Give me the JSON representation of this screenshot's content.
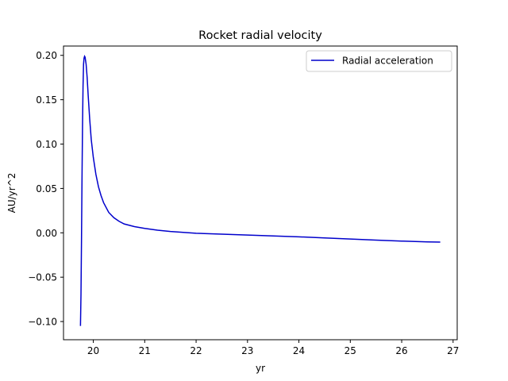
{
  "chart_data": {
    "type": "line",
    "title": "Rocket radial velocity",
    "xlabel": "yr",
    "ylabel": "AU/yr^2",
    "xlim": [
      19.42,
      27.08
    ],
    "ylim": [
      -0.1205,
      0.2105
    ],
    "x_ticks": [
      20,
      21,
      22,
      23,
      24,
      25,
      26,
      27
    ],
    "y_ticks": [
      -0.1,
      -0.05,
      0.0,
      0.05,
      0.1,
      0.15,
      0.2
    ],
    "x_tick_labels": [
      "20",
      "21",
      "22",
      "23",
      "24",
      "25",
      "26",
      "27"
    ],
    "y_tick_labels": [
      "−0.10",
      "−0.05",
      "0.00",
      "0.05",
      "0.10",
      "0.15",
      "0.20"
    ],
    "grid": false,
    "legend": {
      "position": "upper right"
    },
    "series": [
      {
        "name": "Radial acceleration",
        "color": "#0000cc",
        "x": [
          19.75,
          19.76,
          19.77,
          19.78,
          19.79,
          19.8,
          19.81,
          19.82,
          19.83,
          19.84,
          19.86,
          19.88,
          19.9,
          19.93,
          19.96,
          20.0,
          20.05,
          20.1,
          20.15,
          20.2,
          20.3,
          20.4,
          20.5,
          20.6,
          20.8,
          21.0,
          21.25,
          21.5,
          21.75,
          22.0,
          22.5,
          23.0,
          23.5,
          24.0,
          24.5,
          25.0,
          25.5,
          26.0,
          26.5,
          26.75
        ],
        "y": [
          -0.105,
          -0.07,
          -0.01,
          0.06,
          0.12,
          0.165,
          0.19,
          0.197,
          0.199,
          0.198,
          0.19,
          0.175,
          0.155,
          0.128,
          0.105,
          0.085,
          0.066,
          0.052,
          0.042,
          0.034,
          0.023,
          0.017,
          0.013,
          0.01,
          0.007,
          0.005,
          0.003,
          0.0015,
          0.0005,
          -0.0005,
          -0.0015,
          -0.0025,
          -0.0035,
          -0.0045,
          -0.0058,
          -0.007,
          -0.0082,
          -0.0093,
          -0.0102,
          -0.0105
        ]
      }
    ]
  }
}
